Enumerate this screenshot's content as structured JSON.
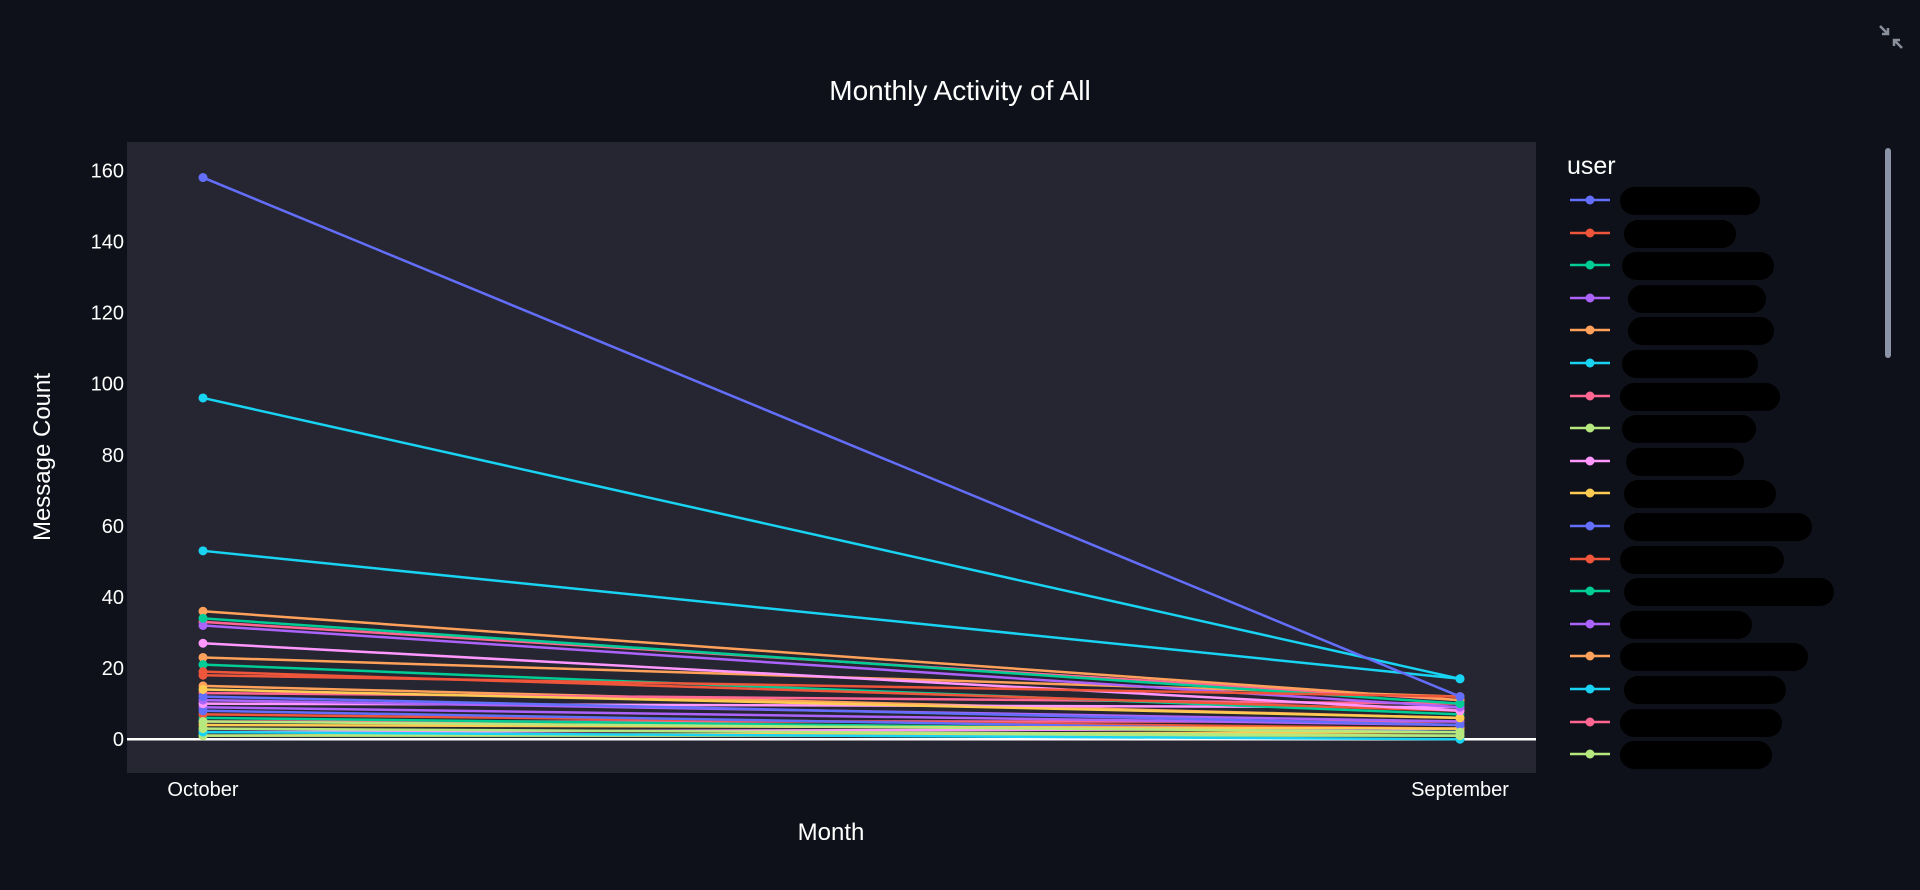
{
  "chart_data": {
    "type": "line",
    "title": "Monthly Activity of All",
    "xlabel": "Month",
    "ylabel": "Message Count",
    "categories": [
      "October",
      "September"
    ],
    "y_ticks": [
      0,
      20,
      40,
      60,
      80,
      100,
      120,
      140,
      160
    ],
    "ylim": [
      -9.5,
      168
    ],
    "grid": false,
    "zero_line": true,
    "legend": {
      "title": "user",
      "placement": "right"
    },
    "series": [
      {
        "color": "#636efa",
        "values": [
          158,
          12
        ]
      },
      {
        "color": "#EF553B",
        "values": [
          18,
          12
        ]
      },
      {
        "color": "#00cc96",
        "values": [
          34,
          10
        ]
      },
      {
        "color": "#ab63fa",
        "values": [
          32,
          9
        ]
      },
      {
        "color": "#FFA15A",
        "values": [
          36,
          11
        ]
      },
      {
        "color": "#19d3f3",
        "values": [
          96,
          17
        ]
      },
      {
        "color": "#FF6692",
        "values": [
          33,
          11
        ]
      },
      {
        "color": "#B6E880",
        "values": [
          5,
          2
        ]
      },
      {
        "color": "#FF97FF",
        "values": [
          27,
          8
        ]
      },
      {
        "color": "#FECB52",
        "values": [
          14,
          6
        ]
      },
      {
        "color": "#636efa",
        "values": [
          12,
          4
        ]
      },
      {
        "color": "#EF553B",
        "values": [
          19,
          8
        ]
      },
      {
        "color": "#00cc96",
        "values": [
          21,
          7
        ]
      },
      {
        "color": "#ab63fa",
        "values": [
          11,
          5
        ]
      },
      {
        "color": "#FFA15A",
        "values": [
          23,
          12
        ]
      },
      {
        "color": "#19d3f3",
        "values": [
          53,
          17
        ]
      },
      {
        "color": "#FF6692",
        "values": [
          13,
          10
        ]
      },
      {
        "color": "#B6E880",
        "values": [
          3,
          1
        ]
      },
      {
        "color": "#FF97FF",
        "values": [
          10,
          9
        ]
      },
      {
        "color": "#FECB52",
        "values": [
          4,
          3
        ]
      },
      {
        "color": "#636efa",
        "values": [
          8,
          2
        ]
      },
      {
        "color": "#EF553B",
        "values": [
          7,
          3
        ]
      },
      {
        "color": "#00cc96",
        "values": [
          6,
          2
        ]
      },
      {
        "color": "#ab63fa",
        "values": [
          9,
          4
        ]
      },
      {
        "color": "#FFA15A",
        "values": [
          15,
          6
        ]
      },
      {
        "color": "#19d3f3",
        "values": [
          2,
          0
        ]
      },
      {
        "color": "#FF6692",
        "values": [
          5,
          5
        ]
      },
      {
        "color": "#B6E880",
        "values": [
          1,
          1
        ]
      },
      {
        "color": "#FF97FF",
        "values": [
          2,
          3
        ]
      },
      {
        "color": "#FECB52",
        "values": [
          1,
          2
        ]
      }
    ]
  },
  "ui": {
    "collapse_icon": "collapse-arrows-icon",
    "colors": {
      "page_bg": "#0e1119",
      "plot_bg": "#252631",
      "zero_line": "#ffffff",
      "text": "#ffffff"
    }
  }
}
